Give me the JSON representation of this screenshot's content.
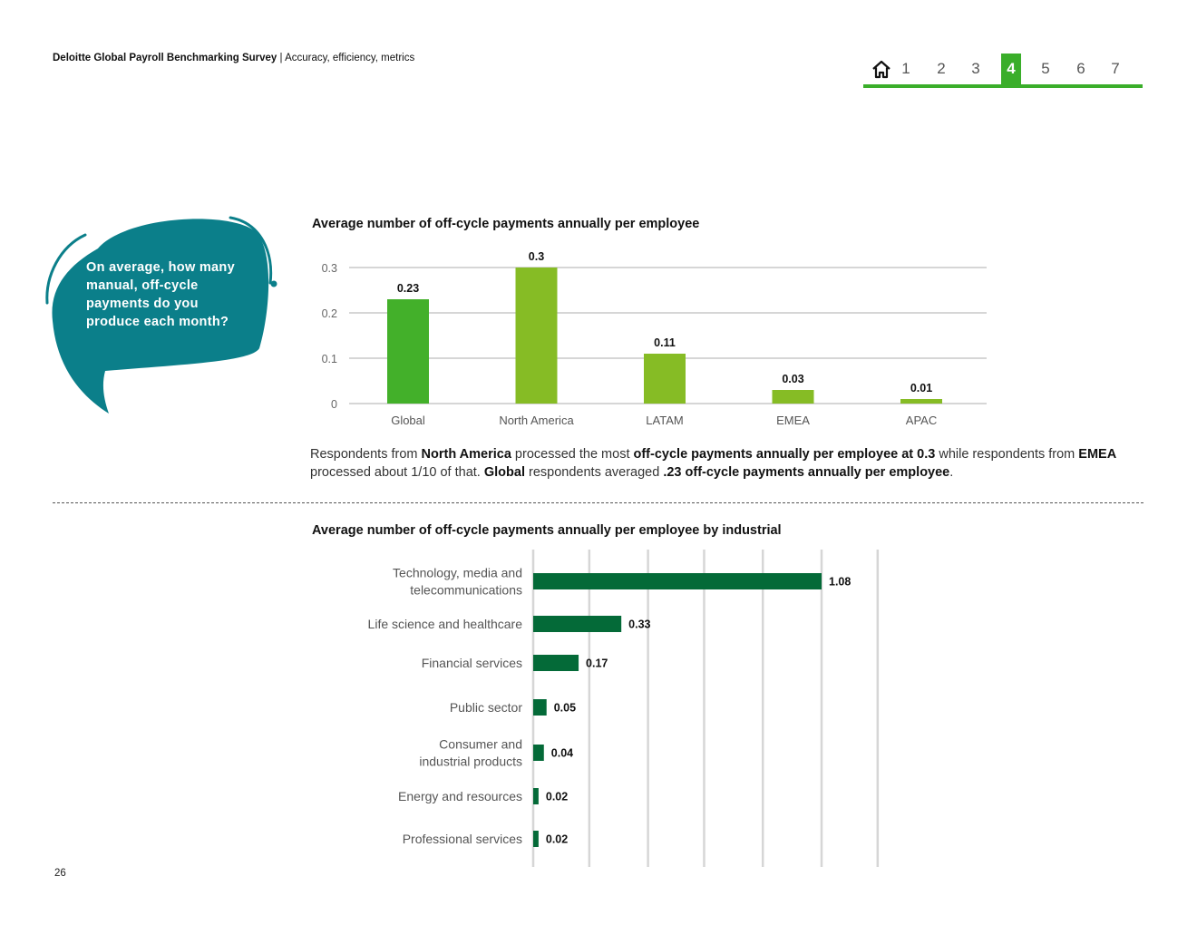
{
  "header": {
    "title": "Deloitte Global Payroll Benchmarking Survey",
    "separator": " | ",
    "subtitle": "Accuracy, efficiency, metrics"
  },
  "nav": {
    "items": [
      "1",
      "2",
      "3",
      "4",
      "5",
      "6",
      "7"
    ],
    "active": "4",
    "home_icon": "home-icon",
    "accent_color": "#3aae2a"
  },
  "bubble": {
    "lines": [
      "On average, how many",
      "manual, off-cycle",
      "payments do you",
      "produce each month?"
    ],
    "color": "#0b7f8a"
  },
  "summary": {
    "p1": "Respondents from ",
    "b1": "North America",
    "p2": " processed the most ",
    "b2": "off-cycle payments annually per employee at 0.3",
    "p3": " while respondents from ",
    "b3": "EMEA",
    "p4": " processed about 1/10 of that. ",
    "b4": "Global",
    "p5": " respondents averaged ",
    "b5": ".23 off-cycle payments annually per employee",
    "p6": "."
  },
  "page_number": "26",
  "chart_data": [
    {
      "type": "bar",
      "title": "Average number of off-cycle payments annually per employee",
      "categories": [
        "Global",
        "North America",
        "LATAM",
        "EMEA",
        "APAC"
      ],
      "values": [
        0.23,
        0.3,
        0.11,
        0.03,
        0.01
      ],
      "value_labels": [
        "0.23",
        "0.3",
        "0.11",
        "0.03",
        "0.01"
      ],
      "yticks": [
        "0",
        "0.1",
        "0.2",
        "0.3"
      ],
      "ylim": [
        0,
        0.3
      ],
      "grid": true,
      "colors": [
        "#43b02a",
        "#86bc25",
        "#86bc25",
        "#86bc25",
        "#86bc25"
      ]
    },
    {
      "type": "bar",
      "orientation": "horizontal",
      "title": "Average number of off-cycle payments annually per employee by industrial",
      "categories": [
        [
          "Technology, media and",
          "telecommunications"
        ],
        [
          "Life science and healthcare"
        ],
        [
          "Financial services"
        ],
        [
          "Public sector"
        ],
        [
          "Consumer and",
          "industrial products"
        ],
        [
          "Energy and resources"
        ],
        [
          "Professional services"
        ]
      ],
      "values": [
        1.08,
        0.33,
        0.17,
        0.05,
        0.04,
        0.02,
        0.02
      ],
      "value_labels": [
        "1.08",
        "0.33",
        "0.17",
        "0.05",
        "0.04",
        "0.02",
        "0.02"
      ],
      "xlim": [
        0,
        1.2
      ],
      "grid": true,
      "color": "#046a38"
    }
  ]
}
